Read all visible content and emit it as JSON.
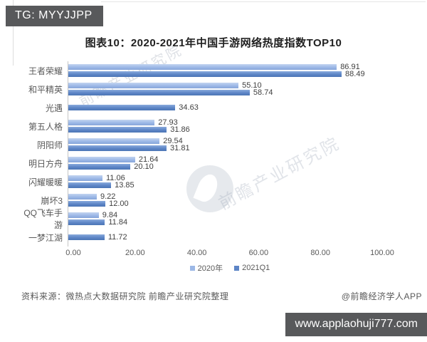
{
  "header": {
    "tg_badge": "TG: MYYJJPP",
    "badge_bg_color": "#58595b"
  },
  "chart_data": {
    "type": "bar",
    "orientation": "horizontal",
    "title": "图表10：2020-2021年中国手游网络热度指数TOP10",
    "categories": [
      "王者荣耀",
      "和平精英",
      "光遇",
      "第五人格",
      "阴阳师",
      "明日方舟",
      "闪耀暖暖",
      "崩坏3",
      "QQ飞车手游",
      "一梦江湖"
    ],
    "series": [
      {
        "name": "2020年",
        "color": "#9cb8e6",
        "values": [
          86.91,
          55.1,
          null,
          27.93,
          29.54,
          21.64,
          11.06,
          9.22,
          9.84,
          null
        ]
      },
      {
        "name": "2021Q1",
        "color": "#5d85c6",
        "values": [
          88.49,
          58.74,
          34.63,
          31.86,
          31.81,
          20.1,
          13.85,
          12.0,
          11.84,
          11.72
        ]
      }
    ],
    "x_ticks": [
      "0.00",
      "20.00",
      "40.00",
      "60.00",
      "80.00",
      "100.00"
    ],
    "xlim": [
      0,
      100
    ],
    "value_labels": true,
    "grid": false,
    "legend_position": "bottom"
  },
  "watermark": {
    "text": "前瞻产业研究院"
  },
  "footer": {
    "source": "资料来源：微热点大数据研究院 前瞻产业研究院整理",
    "credit": "@前瞻经济学人APP",
    "url_badge": "www.applaohuji777.com"
  }
}
